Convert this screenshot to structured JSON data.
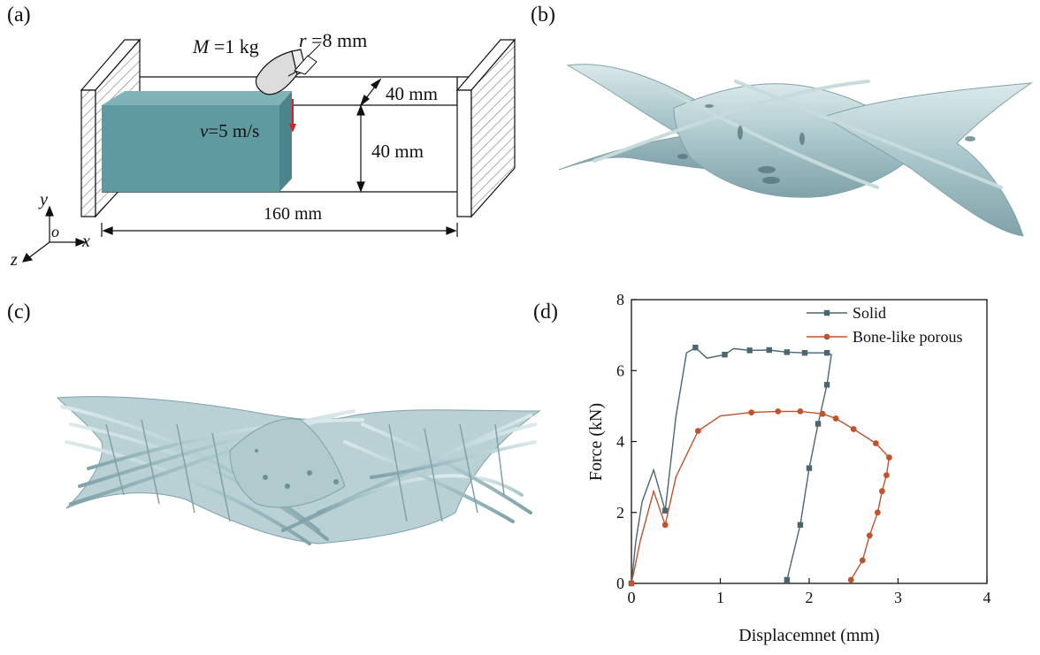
{
  "panels": {
    "a": {
      "label": "(a)"
    },
    "b": {
      "label": "(b)"
    },
    "c": {
      "label": "(c)"
    },
    "d": {
      "label": "(d)"
    }
  },
  "schematic": {
    "mass_symbol": "M",
    "mass_value": " =1 kg",
    "radius_symbol": "r",
    "radius_value": " =8 mm",
    "velocity_symbol": "v",
    "velocity_value": "=5 m/s",
    "depth_dim": "40 mm",
    "height_dim": "40 mm",
    "length_dim": "160 mm",
    "axis_y": "y",
    "axis_o": "o",
    "axis_x": "x",
    "axis_z": "z",
    "colors": {
      "block": "#5f9aa0",
      "block_top": "#7fb3b8",
      "block_side": "#4b858b",
      "impact_arrow": "#d62020"
    }
  },
  "model_colors": {
    "surface": "#a9c6cb",
    "shade": "#7fa2a8",
    "highlight": "#dbe9eb"
  },
  "chart_data": {
    "type": "line",
    "xlabel": "Displacemnet (mm)",
    "ylabel": "Force (kN)",
    "xlim": [
      0,
      4
    ],
    "ylim": [
      0,
      8
    ],
    "xticks": [
      0,
      1,
      2,
      3,
      4
    ],
    "yticks": [
      0,
      2,
      4,
      6,
      8
    ],
    "legend_position": "top-right",
    "series": [
      {
        "name": "Solid",
        "color": "#4a6670",
        "marker": "square",
        "points": [
          [
            0,
            0
          ],
          [
            0.05,
            1.2
          ],
          [
            0.12,
            2.3
          ],
          [
            0.25,
            3.2
          ],
          [
            0.38,
            2.05
          ],
          [
            0.5,
            4.7
          ],
          [
            0.62,
            6.5
          ],
          [
            0.72,
            6.65
          ],
          [
            0.85,
            6.35
          ],
          [
            1.05,
            6.45
          ],
          [
            1.15,
            6.62
          ],
          [
            1.33,
            6.57
          ],
          [
            1.55,
            6.58
          ],
          [
            1.75,
            6.52
          ],
          [
            1.95,
            6.5
          ],
          [
            2.2,
            6.5
          ],
          [
            2.25,
            6.45
          ],
          [
            2.2,
            5.6
          ],
          [
            2.1,
            4.5
          ],
          [
            2.0,
            3.25
          ],
          [
            1.9,
            1.65
          ],
          [
            1.75,
            0.1
          ]
        ],
        "marker_x": [
          0,
          0.38,
          0.72,
          1.05,
          1.33,
          1.55,
          1.75,
          1.95,
          2.2,
          2.2,
          2.1,
          2.0,
          1.9,
          1.75
        ]
      },
      {
        "name": "Bone-like porous",
        "color": "#c0532e",
        "marker": "circle",
        "points": [
          [
            0,
            0
          ],
          [
            0.1,
            1.2
          ],
          [
            0.25,
            2.6
          ],
          [
            0.38,
            1.65
          ],
          [
            0.5,
            3.0
          ],
          [
            0.75,
            4.3
          ],
          [
            1.0,
            4.72
          ],
          [
            1.35,
            4.82
          ],
          [
            1.65,
            4.85
          ],
          [
            1.9,
            4.85
          ],
          [
            2.15,
            4.78
          ],
          [
            2.3,
            4.65
          ],
          [
            2.5,
            4.35
          ],
          [
            2.75,
            3.95
          ],
          [
            2.9,
            3.55
          ],
          [
            2.87,
            3.05
          ],
          [
            2.82,
            2.6
          ],
          [
            2.77,
            2.0
          ],
          [
            2.68,
            1.35
          ],
          [
            2.6,
            0.65
          ],
          [
            2.47,
            0.1
          ]
        ],
        "marker_x": [
          0,
          0.38,
          0.75,
          1.05,
          1.35,
          1.65,
          1.9,
          2.15,
          2.3,
          2.5,
          2.75,
          2.9,
          2.87,
          2.82,
          2.77,
          2.68,
          2.6,
          2.47
        ]
      }
    ]
  }
}
